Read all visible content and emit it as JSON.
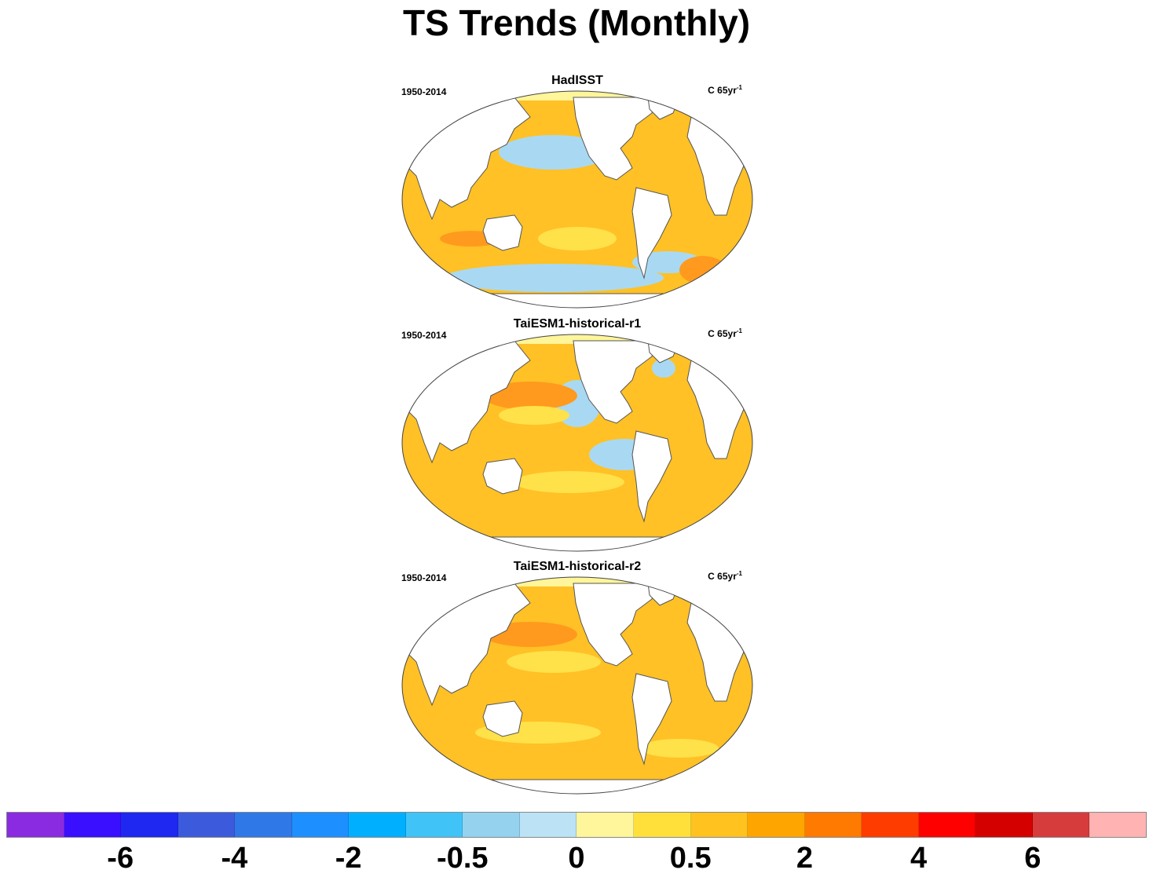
{
  "title": "TS Trends (Monthly)",
  "panels": [
    {
      "title": "HadISST",
      "period": "1950-2014",
      "units": "C 65yr",
      "units_sup": "-1"
    },
    {
      "title": "TaiESM1-historical-r1",
      "period": "1950-2014",
      "units": "C 65yr",
      "units_sup": "-1"
    },
    {
      "title": "TaiESM1-historical-r2",
      "period": "1950-2014",
      "units": "C 65yr",
      "units_sup": "-1"
    }
  ],
  "colorbar": {
    "colors": [
      "#8A2BE2",
      "#3A0FFF",
      "#1E28F0",
      "#3C5BDC",
      "#2F78E8",
      "#1E8FFF",
      "#00B0FF",
      "#40C4F8",
      "#94D2EE",
      "#BCE2F5",
      "#FFF59A",
      "#FFE03A",
      "#FFC21E",
      "#FFA500",
      "#FF7A00",
      "#FF3C00",
      "#FF0000",
      "#D40000",
      "#D63C3C",
      "#FFB3B3"
    ],
    "tick_labels": [
      "-6",
      "-4",
      "-2",
      "-0.5",
      "0",
      "0.5",
      "2",
      "4",
      "6"
    ]
  },
  "map_palette": {
    "ocean_warm": "#FFC125",
    "ocean_mid": "#FFE14A",
    "ocean_pale": "#FFF59A",
    "ocean_hot": "#FF9A1E",
    "ocean_cool": "#A9D9F2",
    "land": "#FFFFFF",
    "coast": "#555555"
  }
}
